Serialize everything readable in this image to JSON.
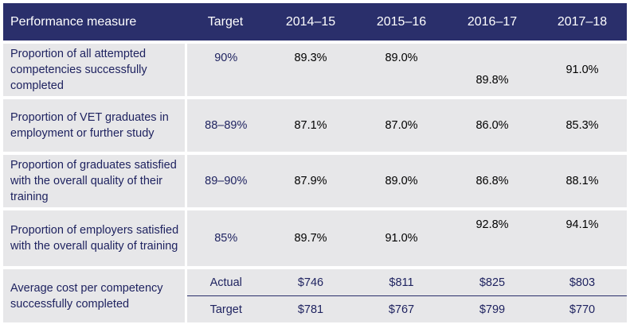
{
  "table": {
    "headers": [
      "Performance measure",
      "Target",
      "2014–15",
      "2015–16",
      "2016–17",
      "2017–18"
    ],
    "rows": [
      {
        "measure": "Proportion of all attempted competencies successfully completed",
        "target": "90%",
        "values": [
          "89.3%",
          "89.0%",
          "89.8%",
          "91.0%"
        ]
      },
      {
        "measure": "Proportion of VET graduates in employment or further study",
        "target": "88–89%",
        "values": [
          "87.1%",
          "87.0%",
          "86.0%",
          "85.3%"
        ]
      },
      {
        "measure": "Proportion of graduates satisfied with the overall quality of their training",
        "target": "89–90%",
        "values": [
          "87.9%",
          "89.0%",
          "86.8%",
          "88.1%"
        ]
      },
      {
        "measure": "Proportion of employers satisfied with the overall quality of training",
        "target": "85%",
        "values": [
          "89.7%",
          "91.0%",
          "92.8%",
          "94.1%"
        ]
      }
    ],
    "cost": {
      "measure": "Average cost per competency successfully completed",
      "actual": {
        "label": "Actual",
        "values": [
          "$746",
          "$811",
          "$825",
          "$803"
        ]
      },
      "target": {
        "label": "Target",
        "values": [
          "$781",
          "$767",
          "$799",
          "$770"
        ]
      }
    }
  }
}
